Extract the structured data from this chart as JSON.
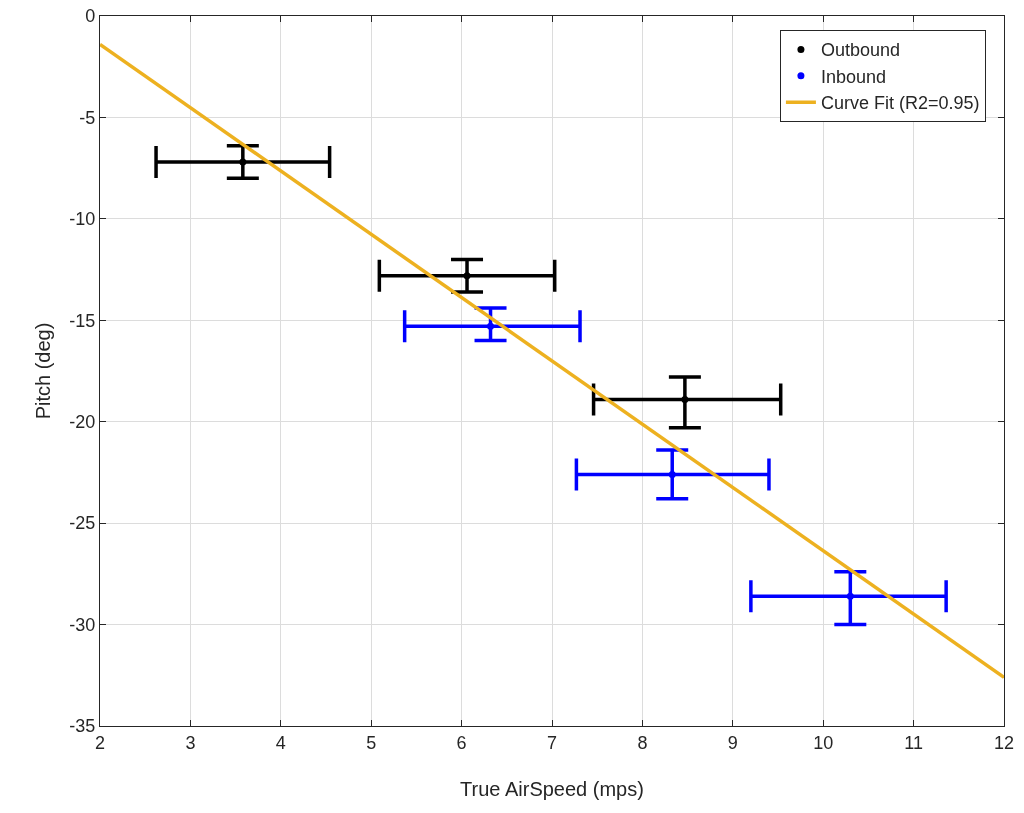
{
  "chart_data": {
    "type": "scatter",
    "xlabel": "True AirSpeed (mps)",
    "ylabel": "Pitch (deg)",
    "xlim": [
      2,
      12
    ],
    "xticks": [
      2,
      3,
      4,
      5,
      6,
      7,
      8,
      9,
      10,
      11,
      12
    ],
    "ylim": [
      -35,
      0
    ],
    "yticks": [
      -35,
      -30,
      -25,
      -20,
      -15,
      -10,
      -5,
      0
    ],
    "grid": true,
    "legend": "top right",
    "marker": "circle",
    "series": [
      {
        "name": "Outbound",
        "color": "#000000",
        "x": [
          3.58,
          6.06,
          8.47
        ],
        "values": [
          -7.2,
          -12.8,
          -18.9
        ],
        "errors": [
          [
            -8.0,
            -6.4
          ],
          [
            -13.6,
            -12.0
          ],
          [
            -20.3,
            -17.8
          ]
        ],
        "xerrors": [
          [
            2.62,
            4.54
          ],
          [
            5.09,
            7.03
          ],
          [
            7.46,
            9.53
          ]
        ]
      },
      {
        "name": "Inbound",
        "color": "#0000ff",
        "x": [
          6.32,
          8.33,
          10.3
        ],
        "values": [
          -15.3,
          -22.6,
          -28.6
        ],
        "errors": [
          [
            -16.0,
            -14.4
          ],
          [
            -23.8,
            -21.4
          ],
          [
            -30.0,
            -27.4
          ]
        ],
        "xerrors": [
          [
            5.37,
            7.31
          ],
          [
            7.27,
            9.4
          ],
          [
            9.2,
            11.36
          ]
        ]
      },
      {
        "name": "Curve Fit (R2=0.95)",
        "type": "line",
        "color": "#edb120",
        "x": [
          2,
          12
        ],
        "values": [
          -1.4,
          -32.6
        ],
        "line_style": "solid",
        "marker": "none"
      }
    ]
  }
}
